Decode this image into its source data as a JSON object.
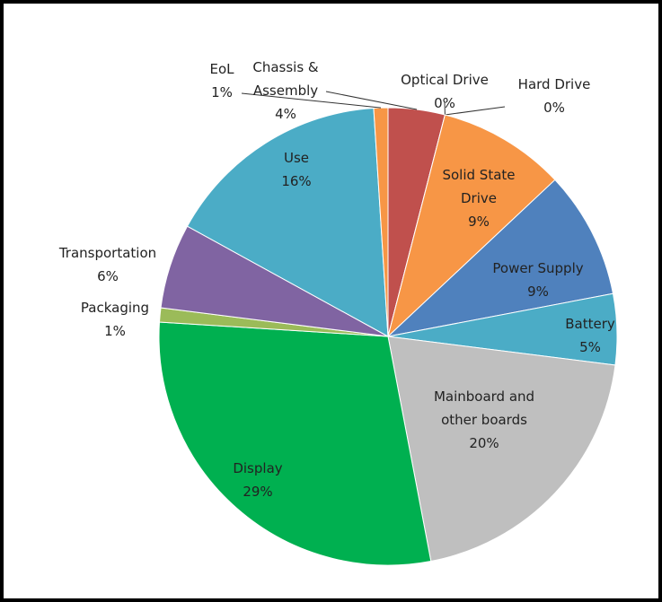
{
  "chart_data": {
    "type": "pie",
    "categories": [
      "Chassis & Assembly",
      "Optical Drive",
      "Hard Drive",
      "Solid State Drive",
      "Power Supply",
      "Battery",
      "Mainboard and other boards",
      "Display",
      "Packaging",
      "Transportation",
      "Use",
      "EoL"
    ],
    "values": [
      4,
      0,
      0,
      9,
      9,
      5,
      20,
      29,
      1,
      6,
      16,
      1
    ],
    "value_labels": [
      "4%",
      "0%",
      "0%",
      "9%",
      "9%",
      "5%",
      "20%",
      "29%",
      "1%",
      "6%",
      "16%",
      "1%"
    ],
    "colors": [
      "#c0504d",
      "#c0504d",
      "#9bbb59",
      "#f79646",
      "#4f81bd",
      "#4bacc6",
      "#bfbfbf",
      "#00b050",
      "#9bbb59",
      "#8064a2",
      "#4bacc6",
      "#f79646"
    ]
  }
}
